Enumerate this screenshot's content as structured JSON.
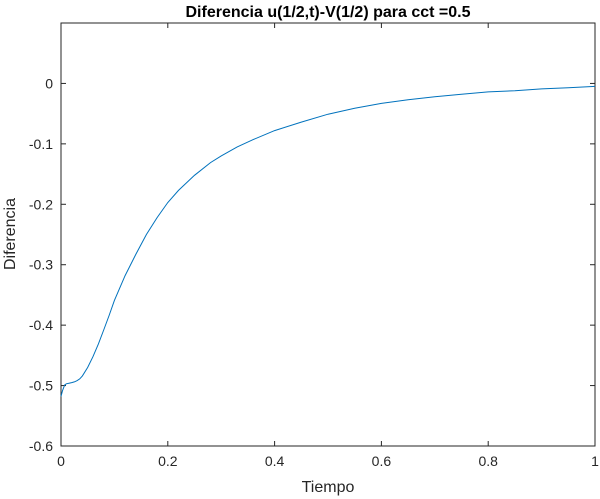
{
  "chart_data": {
    "type": "line",
    "title": "Diferencia u(1/2,t)-V(1/2) para cct =0.5",
    "xlabel": "Tiempo",
    "ylabel": "Diferencia",
    "xlim": [
      0,
      1
    ],
    "ylim": [
      -0.6,
      0.1
    ],
    "xticks": [
      0,
      0.2,
      0.4,
      0.6,
      0.8,
      1
    ],
    "xtick_labels": [
      "0",
      "0.2",
      "0.4",
      "0.6",
      "0.8",
      "1"
    ],
    "yticks": [
      -0.6,
      -0.5,
      -0.4,
      -0.3,
      -0.2,
      -0.1,
      0
    ],
    "ytick_labels": [
      "-0.6",
      "-0.5",
      "-0.4",
      "-0.3",
      "-0.2",
      "-0.1",
      "0"
    ],
    "grid": false,
    "series": [
      {
        "color": "#0072BD",
        "x": [
          0,
          0.003,
          0.007,
          0.01,
          0.015,
          0.02,
          0.025,
          0.03,
          0.035,
          0.04,
          0.05,
          0.06,
          0.07,
          0.08,
          0.09,
          0.1,
          0.12,
          0.14,
          0.16,
          0.18,
          0.2,
          0.22,
          0.25,
          0.28,
          0.3,
          0.33,
          0.36,
          0.4,
          0.45,
          0.5,
          0.55,
          0.6,
          0.65,
          0.7,
          0.75,
          0.8,
          0.85,
          0.9,
          0.95,
          1.0
        ],
        "y": [
          -0.518,
          -0.508,
          -0.499,
          -0.497,
          -0.496,
          -0.495,
          -0.494,
          -0.492,
          -0.489,
          -0.484,
          -0.47,
          -0.452,
          -0.431,
          -0.408,
          -0.384,
          -0.359,
          -0.318,
          -0.283,
          -0.25,
          -0.222,
          -0.197,
          -0.177,
          -0.152,
          -0.131,
          -0.12,
          -0.105,
          -0.093,
          -0.078,
          -0.064,
          -0.051,
          -0.041,
          -0.033,
          -0.027,
          -0.022,
          -0.018,
          -0.014,
          -0.012,
          -0.009,
          -0.007,
          -0.005
        ]
      }
    ]
  }
}
